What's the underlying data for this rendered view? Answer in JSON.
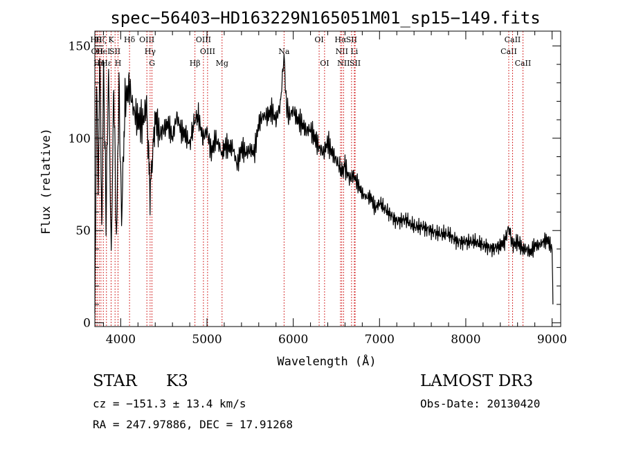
{
  "chart_data": {
    "type": "line",
    "title": "spec−56403−HD163229N165051M01_sp15−149.fits",
    "xlabel": "Wavelength (Å)",
    "ylabel": "Flux (relative)",
    "xlim": [
      3700,
      9100
    ],
    "ylim": [
      -2,
      158
    ],
    "x_ticks": [
      4000,
      5000,
      6000,
      7000,
      8000,
      9000
    ],
    "y_ticks": [
      0,
      50,
      100,
      150
    ],
    "grid": false,
    "series": [
      {
        "name": "flux",
        "x": [
          3700,
          3720,
          3740,
          3760,
          3780,
          3800,
          3830,
          3860,
          3890,
          3920,
          3950,
          3980,
          4010,
          4050,
          4100,
          4150,
          4200,
          4250,
          4300,
          4340,
          4400,
          4450,
          4500,
          4550,
          4600,
          4650,
          4700,
          4750,
          4800,
          4860,
          4900,
          4950,
          5000,
          5050,
          5100,
          5150,
          5180,
          5200,
          5250,
          5300,
          5350,
          5400,
          5450,
          5500,
          5550,
          5600,
          5650,
          5700,
          5750,
          5800,
          5850,
          5893,
          5920,
          5950,
          6000,
          6050,
          6100,
          6150,
          6200,
          6250,
          6300,
          6350,
          6400,
          6450,
          6500,
          6563,
          6600,
          6650,
          6700,
          6750,
          6800,
          6850,
          6900,
          6950,
          7000,
          7100,
          7200,
          7300,
          7400,
          7500,
          7600,
          7700,
          7800,
          7900,
          8000,
          8100,
          8200,
          8300,
          8400,
          8450,
          8498,
          8542,
          8600,
          8662,
          8700,
          8750,
          8800,
          8850,
          8900,
          8950,
          9000,
          9010
        ],
        "y": [
          2,
          130,
          75,
          148,
          45,
          140,
          60,
          138,
          35,
          130,
          42,
          128,
          55,
          120,
          128,
          115,
          110,
          108,
          118,
          70,
          112,
          102,
          105,
          108,
          100,
          112,
          104,
          102,
          97,
          110,
          112,
          100,
          104,
          92,
          100,
          95,
          90,
          96,
          95,
          95,
          85,
          95,
          92,
          94,
          92,
          108,
          112,
          112,
          115,
          110,
          118,
          145,
          118,
          112,
          115,
          110,
          108,
          104,
          105,
          100,
          95,
          92,
          98,
          92,
          88,
          82,
          85,
          78,
          80,
          75,
          70,
          68,
          68,
          62,
          65,
          60,
          55,
          56,
          52,
          52,
          50,
          48,
          48,
          44,
          44,
          44,
          42,
          40,
          42,
          44,
          52,
          42,
          44,
          40,
          40,
          38,
          42,
          42,
          44,
          45,
          40,
          10
        ]
      }
    ],
    "lines": [
      {
        "name": "Hθ",
        "wl": 3712,
        "row": 1
      },
      {
        "name": "OII",
        "wl": 3727,
        "row": 2
      },
      {
        "name": "Hη",
        "wl": 3750,
        "row": 3
      },
      {
        "name": "Hζ",
        "wl": 3771,
        "row": 1
      },
      {
        "name": "HeI",
        "wl": 3798,
        "row": 2
      },
      {
        "name": "Hε",
        "wl": 3835,
        "row": 3
      },
      {
        "name": "K",
        "wl": 3889,
        "row": 1
      },
      {
        "name": "SII",
        "wl": 3934,
        "row": 2
      },
      {
        "name": "H",
        "wl": 3969,
        "row": 3
      },
      {
        "name": "Hδ",
        "wl": 4102,
        "row": 1
      },
      {
        "name": "OIII",
        "wl": 4303,
        "row": 1
      },
      {
        "name": "Hγ",
        "wl": 4341,
        "row": 2
      },
      {
        "name": "G",
        "wl": 4363,
        "row": 3
      },
      {
        "name": "Hβ",
        "wl": 4861,
        "row": 3
      },
      {
        "name": "OIII",
        "wl": 4959,
        "row": 1
      },
      {
        "name": "OIII",
        "wl": 5007,
        "row": 2
      },
      {
        "name": "Mg",
        "wl": 5175,
        "row": 3
      },
      {
        "name": "Na",
        "wl": 5893,
        "row": 2
      },
      {
        "name": "OI",
        "wl": 6300,
        "row": 1
      },
      {
        "name": "OI",
        "wl": 6363,
        "row": 3
      },
      {
        "name": "Hα",
        "wl": 6548,
        "row": 1
      },
      {
        "name": "NII",
        "wl": 6563,
        "row": 2
      },
      {
        "name": "NII",
        "wl": 6583,
        "row": 3
      },
      {
        "name": "SII",
        "wl": 6676,
        "row": 1
      },
      {
        "name": "Li",
        "wl": 6708,
        "row": 2
      },
      {
        "name": "SII",
        "wl": 6717,
        "row": 3
      },
      {
        "name": "CaII",
        "wl": 8498,
        "row": 2
      },
      {
        "name": "CaII",
        "wl": 8542,
        "row": 1
      },
      {
        "name": "CaII",
        "wl": 8662,
        "row": 3
      }
    ]
  },
  "info": {
    "object_class": "STAR",
    "subclass": "K3",
    "survey": "LAMOST DR3",
    "cz": "cz = −151.3 ± 13.4 km/s",
    "obs_date": "Obs-Date: 20130420",
    "coords": "RA = 247.97886, DEC =  17.91268"
  }
}
